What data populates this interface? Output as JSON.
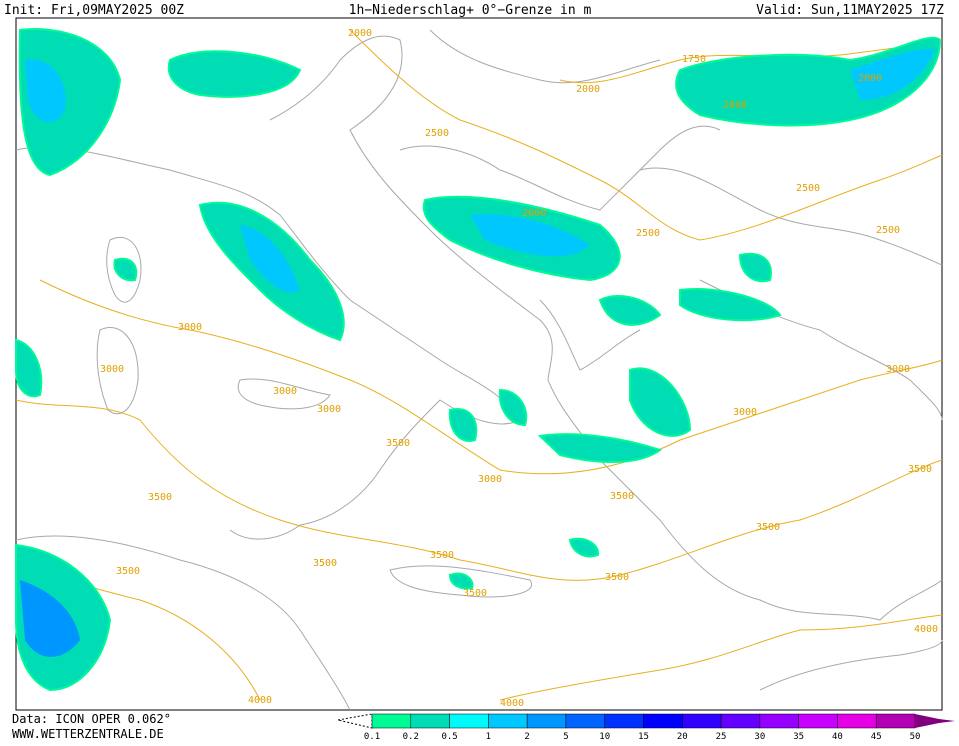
{
  "header": {
    "init": "Init: Fri,09MAY2025 00Z",
    "title": "1h−Niederschlag+ 0°−Grenze in m",
    "valid": "Valid: Sun,11MAY2025 17Z"
  },
  "footer": {
    "data_source": "Data: ICON OPER 0.062°",
    "website": "WWW.WETTERZENTRALE.DE"
  },
  "legend": {
    "labels": [
      "0.1",
      "0.2",
      "0.5",
      "1",
      "2",
      "5",
      "10",
      "15",
      "20",
      "25",
      "30",
      "35",
      "40",
      "45",
      "50"
    ],
    "colors": [
      "#00fa96",
      "#00dcb4",
      "#00fafa",
      "#00c8ff",
      "#0096ff",
      "#0064ff",
      "#0032ff",
      "#0000ff",
      "#3200ff",
      "#6400ff",
      "#9600ff",
      "#c800ff",
      "#e600e6",
      "#b400b4",
      "#800080"
    ]
  },
  "contour_labels": [
    "1750",
    "2000",
    "2000",
    "2000",
    "2000",
    "2000",
    "2500",
    "2500",
    "2500",
    "2500",
    "3000",
    "3000",
    "3000",
    "3000",
    "3000",
    "3000",
    "3000",
    "3500",
    "3500",
    "3500",
    "3500",
    "3500",
    "3500",
    "3500",
    "3500",
    "3500",
    "3500",
    "4000",
    "4000",
    "4000"
  ]
}
